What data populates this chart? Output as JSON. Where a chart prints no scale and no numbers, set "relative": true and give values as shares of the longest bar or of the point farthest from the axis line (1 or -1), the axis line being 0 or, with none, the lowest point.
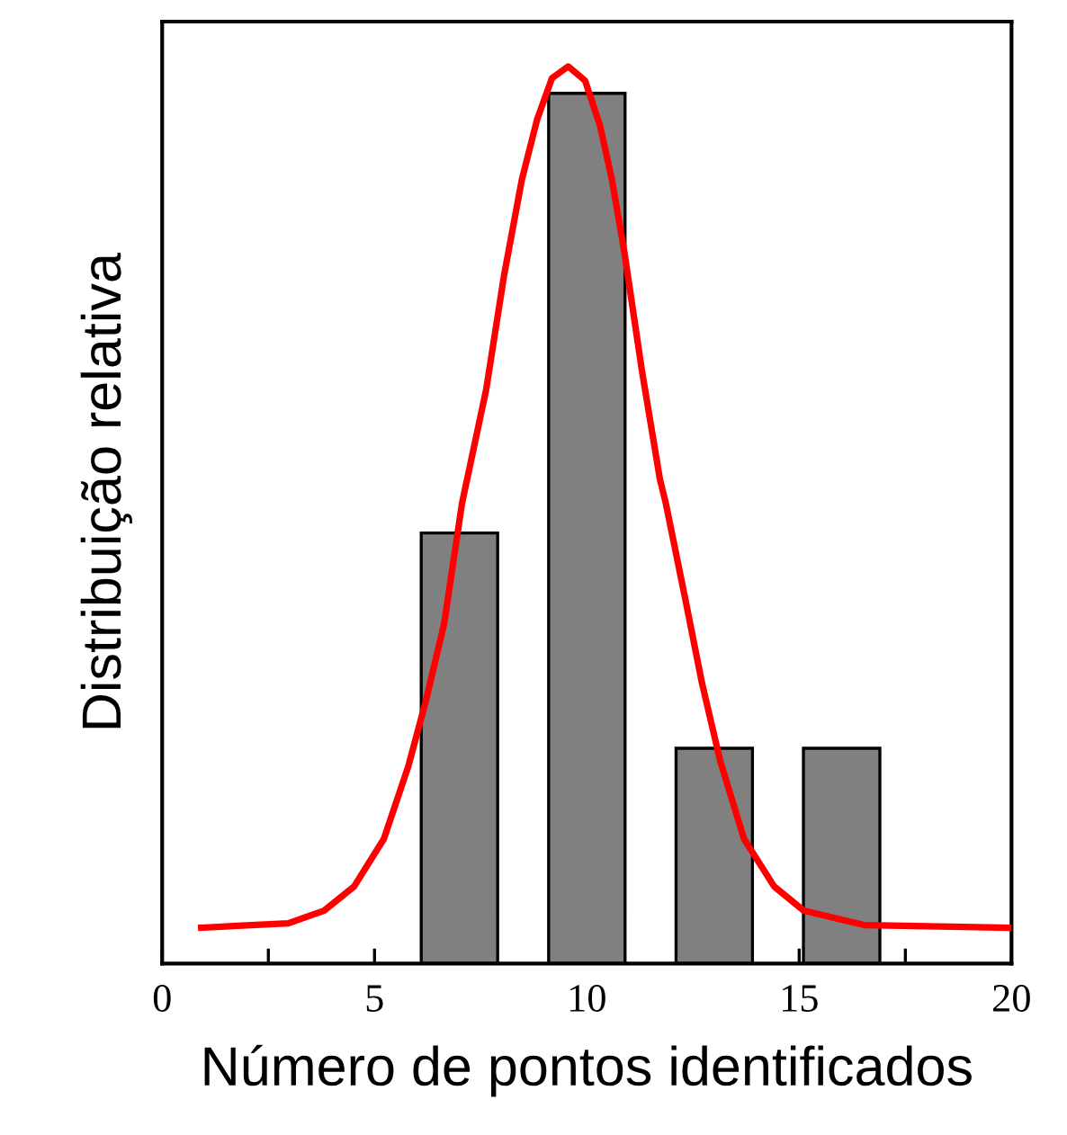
{
  "chart_data": {
    "type": "bar",
    "relative": true,
    "xlabel": "Número de pontos identificados",
    "ylabel": "Distribuição relativa",
    "xlim": [
      0,
      20
    ],
    "xticks": [
      0,
      {
        "value": 2.5,
        "label": null
      },
      5,
      {
        "value": 7.5,
        "label": null
      },
      10,
      {
        "value": 12.5,
        "label": null
      },
      15,
      {
        "value": 17.5,
        "label": null
      },
      20
    ],
    "grid": false,
    "legend": false,
    "series": [
      {
        "color": "#808080",
        "x": [
          7,
          10,
          13,
          16
        ],
        "values": [
          0.48,
          0.97,
          0.24,
          0.24
        ]
      },
      {
        "type": "line",
        "color": "#ff0000",
        "marker": "none",
        "line_style": "solid",
        "x": [
          0.92,
          2.97,
          3.81,
          4.52,
          5.22,
          5.79,
          6.21,
          6.64,
          7.06,
          7.63,
          8.05,
          8.47,
          8.83,
          9.18,
          9.56,
          9.96,
          10.31,
          10.59,
          10.88,
          11.3,
          11.72,
          11.86,
          12.29,
          12.71,
          13.14,
          13.7,
          14.41,
          15.11,
          16.53,
          19.99
        ],
        "values": [
          0.04,
          0.045,
          0.059,
          0.086,
          0.139,
          0.219,
          0.293,
          0.379,
          0.513,
          0.64,
          0.767,
          0.874,
          0.941,
          0.987,
          1.0,
          0.984,
          0.934,
          0.874,
          0.794,
          0.66,
          0.54,
          0.513,
          0.413,
          0.313,
          0.226,
          0.139,
          0.086,
          0.059,
          0.043,
          0.04
        ]
      }
    ]
  }
}
